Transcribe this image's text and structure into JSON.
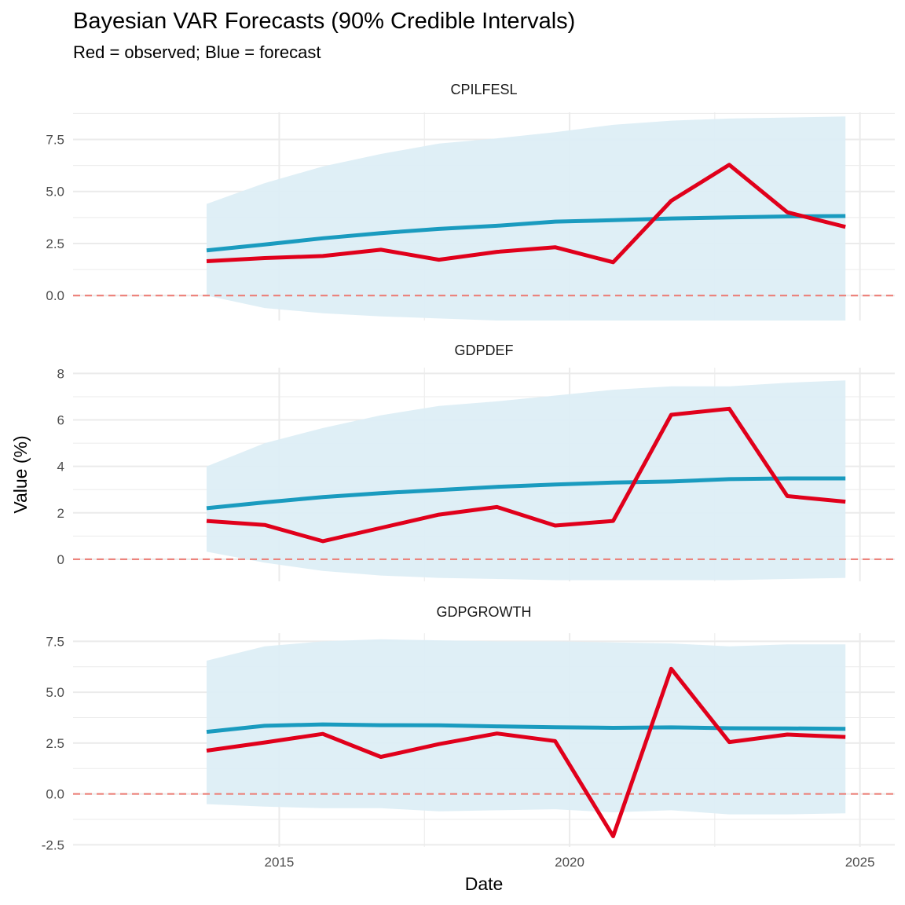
{
  "chart_data": {
    "type": "line",
    "title": "Bayesian VAR Forecasts (90% Credible Intervals)",
    "subtitle": "Red = observed; Blue = forecast",
    "xlabel": "Date",
    "ylabel": "Value (%)",
    "x": [
      2013.75,
      2014.75,
      2015.75,
      2016.75,
      2017.75,
      2018.75,
      2019.75,
      2020.75,
      2021.75,
      2022.75,
      2023.75,
      2024.75
    ],
    "x_ticks": [
      2015,
      2020,
      2025
    ],
    "x_tick_labels": [
      "2015",
      "2020",
      "2025"
    ],
    "xlim": [
      2011.45,
      2025.6
    ],
    "reference_line": 0,
    "grid": true,
    "colors": {
      "observed": "#e0001b",
      "forecast": "#1a9bbf",
      "band": "#ddeef5",
      "reference": "#ec7a72",
      "grid": "#ebebeb"
    },
    "panels": [
      {
        "label": "CPILFESL",
        "ylim": [
          -1.2,
          8.8
        ],
        "y_ticks": [
          0,
          2.5,
          5,
          7.5
        ],
        "y_tick_labels": [
          "0.0",
          "2.5",
          "5.0",
          "7.5"
        ],
        "series": [
          {
            "name": "observed",
            "values": [
              1.65,
              1.8,
              1.9,
              2.2,
              1.72,
              2.1,
              2.32,
              1.6,
              4.55,
              6.28,
              4.0,
              3.3
            ]
          },
          {
            "name": "forecast",
            "values": [
              2.17,
              2.45,
              2.75,
              3.0,
              3.2,
              3.35,
              3.55,
              3.62,
              3.7,
              3.75,
              3.8,
              3.82
            ]
          },
          {
            "name": "lower",
            "values": [
              0.0,
              -0.6,
              -0.85,
              -1.0,
              -1.1,
              -1.2,
              -1.2,
              -1.2,
              -1.2,
              -1.2,
              -1.2,
              -1.2
            ]
          },
          {
            "name": "upper",
            "values": [
              4.4,
              5.4,
              6.2,
              6.8,
              7.3,
              7.55,
              7.85,
              8.2,
              8.4,
              8.5,
              8.55,
              8.6
            ]
          }
        ]
      },
      {
        "label": "GDPDEF",
        "ylim": [
          -0.95,
          8.25
        ],
        "y_ticks": [
          0,
          2,
          4,
          6,
          8
        ],
        "y_tick_labels": [
          "0",
          "2",
          "4",
          "6",
          "8"
        ],
        "series": [
          {
            "name": "observed",
            "values": [
              1.65,
              1.48,
              0.78,
              1.35,
              1.92,
              2.25,
              1.45,
              1.65,
              6.22,
              6.48,
              2.72,
              2.48
            ]
          },
          {
            "name": "forecast",
            "values": [
              2.2,
              2.45,
              2.68,
              2.85,
              2.98,
              3.12,
              3.22,
              3.3,
              3.35,
              3.45,
              3.48,
              3.48
            ]
          },
          {
            "name": "lower",
            "values": [
              0.33,
              -0.15,
              -0.5,
              -0.7,
              -0.8,
              -0.85,
              -0.9,
              -0.9,
              -0.9,
              -0.9,
              -0.85,
              -0.8
            ]
          },
          {
            "name": "upper",
            "values": [
              4.0,
              5.0,
              5.65,
              6.2,
              6.6,
              6.8,
              7.05,
              7.3,
              7.45,
              7.45,
              7.6,
              7.7
            ]
          }
        ]
      },
      {
        "label": "GDPGROWTH",
        "ylim": [
          -2.6,
          7.9
        ],
        "y_ticks": [
          -2.5,
          0,
          2.5,
          5,
          7.5
        ],
        "y_tick_labels": [
          "-2.5",
          "0.0",
          "2.5",
          "5.0",
          "7.5"
        ],
        "series": [
          {
            "name": "observed",
            "values": [
              2.13,
              2.53,
              2.95,
              1.82,
              2.45,
              2.97,
              2.6,
              -2.08,
              6.15,
              2.55,
              2.92,
              2.8
            ]
          },
          {
            "name": "forecast",
            "values": [
              3.05,
              3.35,
              3.42,
              3.38,
              3.37,
              3.32,
              3.28,
              3.25,
              3.27,
              3.23,
              3.22,
              3.2
            ]
          },
          {
            "name": "lower",
            "values": [
              -0.5,
              -0.62,
              -0.7,
              -0.7,
              -0.85,
              -0.8,
              -0.75,
              -0.9,
              -0.8,
              -1.0,
              -1.0,
              -0.95
            ]
          },
          {
            "name": "upper",
            "values": [
              6.55,
              7.25,
              7.5,
              7.6,
              7.55,
              7.5,
              7.5,
              7.45,
              7.4,
              7.25,
              7.35,
              7.35
            ]
          }
        ]
      }
    ]
  }
}
